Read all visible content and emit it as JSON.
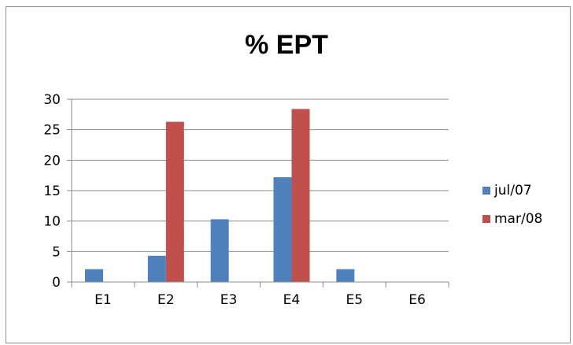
{
  "chart_data": {
    "type": "bar",
    "title": "% EPT",
    "xlabel": "",
    "ylabel": "",
    "categories": [
      "E1",
      "E2",
      "E3",
      "E4",
      "E5",
      "E6"
    ],
    "series": [
      {
        "name": "jul/07",
        "color": "#4f81bd",
        "values": [
          2.1,
          4.3,
          10.3,
          17.2,
          2.1,
          0
        ]
      },
      {
        "name": "mar/08",
        "color": "#c0504d",
        "values": [
          0,
          26.3,
          0,
          28.4,
          0,
          0
        ]
      }
    ],
    "ylim": [
      0,
      30
    ],
    "yticks": [
      "0",
      "5",
      "10",
      "15",
      "20",
      "25",
      "30"
    ],
    "grid": true,
    "legend_position": "right"
  }
}
